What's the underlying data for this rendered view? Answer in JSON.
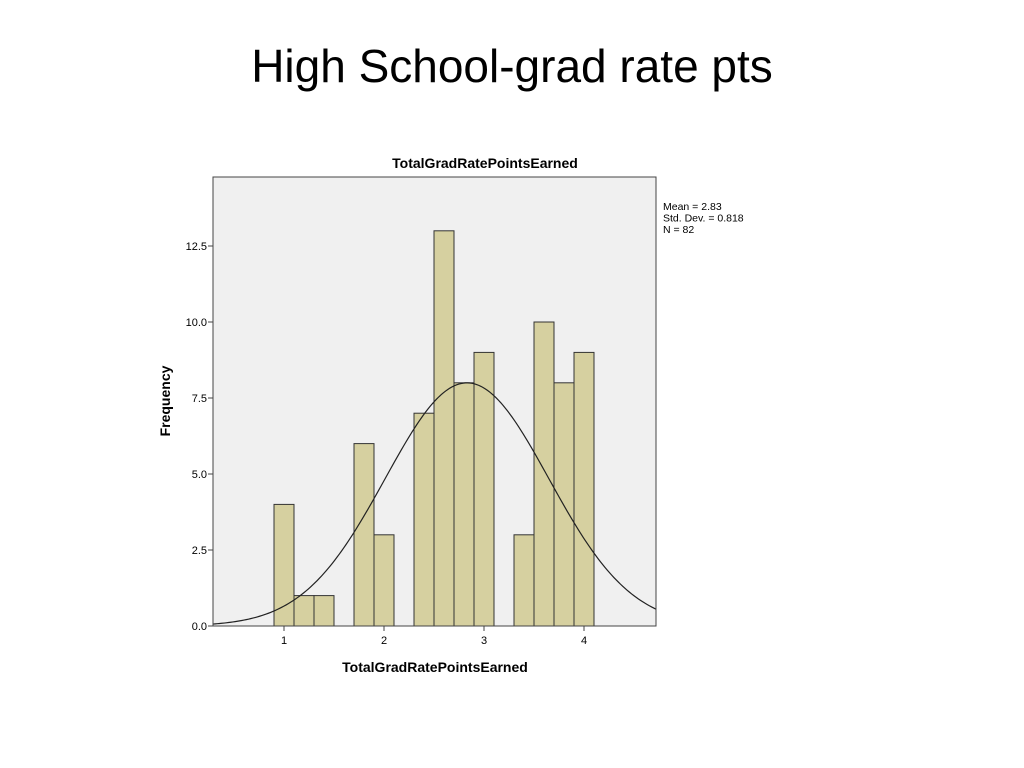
{
  "slide_title": "High School-grad rate pts",
  "chart_data": {
    "type": "histogram",
    "title": "TotalGradRatePointsEarned",
    "xlabel": "TotalGradRatePointsEarned",
    "ylabel": "Frequency",
    "bins": [
      0.9,
      1.1,
      1.3,
      1.5,
      1.7,
      1.9,
      2.1,
      2.3,
      2.5,
      2.7,
      2.9,
      3.1,
      3.3,
      3.5,
      3.7,
      3.9,
      4.1
    ],
    "counts": [
      4,
      1,
      1,
      0,
      6,
      3,
      0,
      7,
      13,
      8,
      9,
      0,
      3,
      10,
      8,
      9
    ],
    "color": "#d6d0a0",
    "xlim": [
      0.29,
      4.72
    ],
    "xticks": [
      1,
      2,
      3,
      4
    ],
    "ylim": [
      0,
      14.77
    ],
    "yticks": [
      {
        "value": 0,
        "label": "0.0"
      },
      {
        "value": 2.5,
        "label": "2.5"
      },
      {
        "value": 5,
        "label": "5.0"
      },
      {
        "value": 7.5,
        "label": "7.5"
      },
      {
        "value": 10,
        "label": "10.0"
      },
      {
        "value": 12.5,
        "label": "12.5"
      }
    ],
    "stats": [
      {
        "value": 2.83,
        "label": "Mean = 2.83"
      },
      {
        "value": 0.818,
        "label": "Std. Dev. = 0.818"
      },
      {
        "value": 82,
        "label": "N = 82"
      }
    ],
    "normal_curve": true
  }
}
